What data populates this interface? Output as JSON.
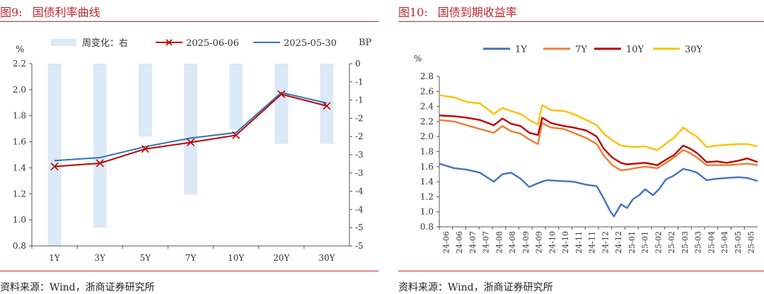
{
  "left": {
    "figure_number": "图9:",
    "title": "国债利率曲线",
    "source": "资料来源：Wind，浙商证券研究所"
  },
  "right": {
    "figure_number": "图10:",
    "title": "国债到期收益率",
    "source": "资料来源：Wind，浙商证券研究所"
  },
  "colors": {
    "title_red": "#c0272d",
    "bar_blue": "#dce9f6",
    "line_red": "#c00000",
    "line_blue": "#2e75b6",
    "y1": "#4472c4",
    "y7": "#ed7d31",
    "y10": "#c00000",
    "y30": "#ffc000"
  },
  "chart_data": [
    {
      "type": "bar+line",
      "categories": [
        "1Y",
        "3Y",
        "5Y",
        "7Y",
        "10Y",
        "20Y",
        "30Y"
      ],
      "ylabel_left": "%",
      "ylabel_right": "BP",
      "ylim_left": [
        0.8,
        2.2
      ],
      "yticks_left": [
        "0.8",
        "1.0",
        "1.2",
        "1.4",
        "1.6",
        "1.8",
        "2.0",
        "2.2"
      ],
      "ylim_right": [
        -5,
        0
      ],
      "yticks_right": [
        "0",
        "-1",
        "-1",
        "-2",
        "-2",
        "-3",
        "-3",
        "-4",
        "-4",
        "-5",
        "-5"
      ],
      "legend_position": "top",
      "series": [
        {
          "name": "周变化：右",
          "kind": "bar",
          "axis": "right",
          "values": [
            -5.0,
            -4.5,
            -2.0,
            -3.6,
            -1.8,
            -2.2,
            -2.2
          ]
        },
        {
          "name": "2025-06-06",
          "kind": "line",
          "marker": "x",
          "axis": "left",
          "values": [
            1.41,
            1.435,
            1.545,
            1.595,
            1.65,
            1.965,
            1.875
          ]
        },
        {
          "name": "2025-05-30",
          "kind": "line",
          "axis": "left",
          "values": [
            1.455,
            1.478,
            1.562,
            1.628,
            1.67,
            1.978,
            1.897
          ]
        }
      ]
    },
    {
      "type": "line",
      "ylabel": "%",
      "ylim": [
        0.8,
        2.8
      ],
      "yticks": [
        "0.8",
        "1.0",
        "1.2",
        "1.4",
        "1.6",
        "1.8",
        "2.0",
        "2.2",
        "2.4",
        "2.6",
        "2.8"
      ],
      "xticks": [
        "24-06",
        "24-06",
        "24-07",
        "24-07",
        "24-08",
        "24-08",
        "24-09",
        "24-09",
        "24-10",
        "24-10",
        "24-11",
        "24-11",
        "24-12",
        "24-12",
        "25-01",
        "25-01",
        "25-02",
        "25-02",
        "25-03",
        "25-03",
        "25-04",
        "25-04",
        "25-05",
        "25-05"
      ],
      "x_start": "2024-06-03",
      "x_end": "2025-06-06",
      "legend_position": "top",
      "series": [
        {
          "name": "1Y",
          "points": [
            [
              "2024-06-03",
              1.64
            ],
            [
              "2024-06-20",
              1.58
            ],
            [
              "2024-07-05",
              1.56
            ],
            [
              "2024-07-20",
              1.52
            ],
            [
              "2024-08-05",
              1.4
            ],
            [
              "2024-08-15",
              1.5
            ],
            [
              "2024-08-25",
              1.52
            ],
            [
              "2024-09-05",
              1.44
            ],
            [
              "2024-09-15",
              1.33
            ],
            [
              "2024-09-25",
              1.38
            ],
            [
              "2024-10-05",
              1.42
            ],
            [
              "2024-10-20",
              1.41
            ],
            [
              "2024-11-05",
              1.4
            ],
            [
              "2024-11-20",
              1.36
            ],
            [
              "2024-12-02",
              1.34
            ],
            [
              "2024-12-10",
              1.18
            ],
            [
              "2024-12-18",
              1.0
            ],
            [
              "2024-12-22",
              0.94
            ],
            [
              "2024-12-30",
              1.1
            ],
            [
              "2025-01-06",
              1.05
            ],
            [
              "2025-01-13",
              1.17
            ],
            [
              "2025-01-20",
              1.22
            ],
            [
              "2025-01-27",
              1.3
            ],
            [
              "2025-02-05",
              1.22
            ],
            [
              "2025-02-12",
              1.3
            ],
            [
              "2025-02-20",
              1.43
            ],
            [
              "2025-03-01",
              1.48
            ],
            [
              "2025-03-12",
              1.57
            ],
            [
              "2025-03-20",
              1.55
            ],
            [
              "2025-03-28",
              1.52
            ],
            [
              "2025-04-08",
              1.42
            ],
            [
              "2025-04-20",
              1.44
            ],
            [
              "2025-05-01",
              1.45
            ],
            [
              "2025-05-15",
              1.46
            ],
            [
              "2025-05-25",
              1.45
            ],
            [
              "2025-06-06",
              1.41
            ]
          ]
        },
        {
          "name": "7Y",
          "points": [
            [
              "2024-06-03",
              2.22
            ],
            [
              "2024-06-20",
              2.2
            ],
            [
              "2024-07-05",
              2.15
            ],
            [
              "2024-07-20",
              2.1
            ],
            [
              "2024-08-05",
              2.05
            ],
            [
              "2024-08-15",
              2.14
            ],
            [
              "2024-08-25",
              2.07
            ],
            [
              "2024-09-05",
              2.04
            ],
            [
              "2024-09-15",
              1.96
            ],
            [
              "2024-09-25",
              1.9
            ],
            [
              "2024-09-30",
              2.18
            ],
            [
              "2024-10-10",
              2.12
            ],
            [
              "2024-10-25",
              2.1
            ],
            [
              "2024-11-05",
              2.05
            ],
            [
              "2024-11-20",
              1.98
            ],
            [
              "2024-12-02",
              1.9
            ],
            [
              "2024-12-10",
              1.75
            ],
            [
              "2024-12-20",
              1.62
            ],
            [
              "2024-12-30",
              1.55
            ],
            [
              "2025-01-06",
              1.56
            ],
            [
              "2025-01-15",
              1.58
            ],
            [
              "2025-01-27",
              1.6
            ],
            [
              "2025-02-10",
              1.58
            ],
            [
              "2025-02-24",
              1.68
            ],
            [
              "2025-03-01",
              1.72
            ],
            [
              "2025-03-12",
              1.82
            ],
            [
              "2025-03-20",
              1.78
            ],
            [
              "2025-03-28",
              1.72
            ],
            [
              "2025-04-08",
              1.62
            ],
            [
              "2025-04-20",
              1.62
            ],
            [
              "2025-05-01",
              1.62
            ],
            [
              "2025-05-15",
              1.63
            ],
            [
              "2025-05-25",
              1.64
            ],
            [
              "2025-06-06",
              1.62
            ]
          ]
        },
        {
          "name": "10Y",
          "points": [
            [
              "2024-06-03",
              2.28
            ],
            [
              "2024-06-20",
              2.27
            ],
            [
              "2024-07-05",
              2.25
            ],
            [
              "2024-07-20",
              2.22
            ],
            [
              "2024-08-05",
              2.15
            ],
            [
              "2024-08-15",
              2.24
            ],
            [
              "2024-08-25",
              2.17
            ],
            [
              "2024-09-05",
              2.14
            ],
            [
              "2024-09-15",
              2.05
            ],
            [
              "2024-09-25",
              2.02
            ],
            [
              "2024-09-30",
              2.25
            ],
            [
              "2024-10-10",
              2.18
            ],
            [
              "2024-10-25",
              2.14
            ],
            [
              "2024-11-05",
              2.12
            ],
            [
              "2024-11-20",
              2.08
            ],
            [
              "2024-12-02",
              2.0
            ],
            [
              "2024-12-10",
              1.84
            ],
            [
              "2024-12-20",
              1.72
            ],
            [
              "2024-12-30",
              1.65
            ],
            [
              "2025-01-06",
              1.63
            ],
            [
              "2025-01-15",
              1.64
            ],
            [
              "2025-01-27",
              1.65
            ],
            [
              "2025-02-10",
              1.62
            ],
            [
              "2025-02-24",
              1.72
            ],
            [
              "2025-03-01",
              1.75
            ],
            [
              "2025-03-12",
              1.88
            ],
            [
              "2025-03-20",
              1.84
            ],
            [
              "2025-03-28",
              1.78
            ],
            [
              "2025-04-08",
              1.66
            ],
            [
              "2025-04-20",
              1.67
            ],
            [
              "2025-05-01",
              1.65
            ],
            [
              "2025-05-15",
              1.68
            ],
            [
              "2025-05-25",
              1.71
            ],
            [
              "2025-06-06",
              1.66
            ]
          ]
        },
        {
          "name": "30Y",
          "points": [
            [
              "2024-06-03",
              2.55
            ],
            [
              "2024-06-20",
              2.52
            ],
            [
              "2024-07-05",
              2.46
            ],
            [
              "2024-07-20",
              2.44
            ],
            [
              "2024-08-05",
              2.3
            ],
            [
              "2024-08-15",
              2.38
            ],
            [
              "2024-08-25",
              2.34
            ],
            [
              "2024-09-05",
              2.3
            ],
            [
              "2024-09-15",
              2.22
            ],
            [
              "2024-09-25",
              2.16
            ],
            [
              "2024-09-30",
              2.42
            ],
            [
              "2024-10-10",
              2.35
            ],
            [
              "2024-10-25",
              2.34
            ],
            [
              "2024-11-05",
              2.3
            ],
            [
              "2024-11-20",
              2.22
            ],
            [
              "2024-12-02",
              2.15
            ],
            [
              "2024-12-10",
              2.04
            ],
            [
              "2024-12-20",
              1.95
            ],
            [
              "2024-12-30",
              1.88
            ],
            [
              "2025-01-06",
              1.87
            ],
            [
              "2025-01-15",
              1.86
            ],
            [
              "2025-01-27",
              1.87
            ],
            [
              "2025-02-10",
              1.82
            ],
            [
              "2025-02-24",
              1.94
            ],
            [
              "2025-03-01",
              1.98
            ],
            [
              "2025-03-12",
              2.12
            ],
            [
              "2025-03-20",
              2.05
            ],
            [
              "2025-03-28",
              2.0
            ],
            [
              "2025-04-08",
              1.86
            ],
            [
              "2025-04-20",
              1.88
            ],
            [
              "2025-05-01",
              1.89
            ],
            [
              "2025-05-15",
              1.9
            ],
            [
              "2025-05-25",
              1.9
            ],
            [
              "2025-06-06",
              1.87
            ]
          ]
        }
      ]
    }
  ]
}
